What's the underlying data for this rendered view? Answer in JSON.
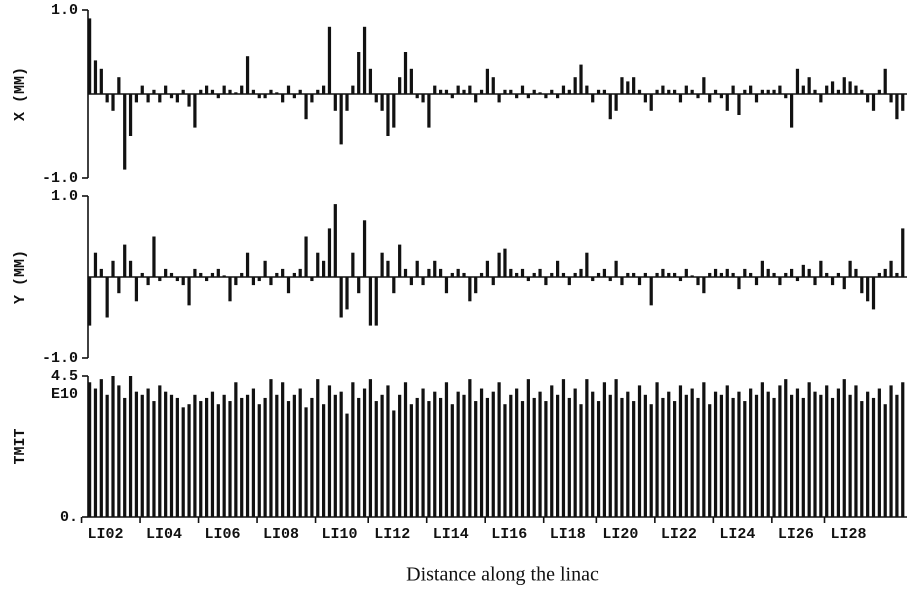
{
  "chart_data": [
    {
      "type": "bar",
      "ylabel": "X (MM)",
      "ylim": [
        -1,
        1
      ],
      "yticks": [
        {
          "value": 1,
          "label": "1.0"
        },
        {
          "value": -1,
          "label": "-1.0"
        }
      ],
      "color": "#111111",
      "values": [
        0.9,
        0.4,
        0.3,
        -0.1,
        -0.2,
        0.2,
        -0.9,
        -0.5,
        -0.1,
        0.1,
        -0.1,
        0.05,
        -0.1,
        0.1,
        -0.05,
        -0.1,
        0.05,
        -0.15,
        -0.4,
        0.05,
        0.1,
        0.05,
        -0.05,
        0.1,
        0.05,
        0.02,
        0.1,
        0.45,
        0.05,
        -0.05,
        -0.05,
        0.05,
        0.02,
        -0.1,
        0.1,
        -0.05,
        0.05,
        -0.3,
        -0.1,
        0.05,
        0.1,
        0.8,
        -0.2,
        -0.6,
        -0.2,
        0.1,
        0.5,
        0.8,
        0.3,
        -0.1,
        -0.2,
        -0.5,
        -0.4,
        0.2,
        0.5,
        0.3,
        -0.05,
        -0.1,
        -0.4,
        0.1,
        0.05,
        0.05,
        -0.05,
        0.1,
        0.05,
        0.1,
        -0.1,
        0.05,
        0.3,
        0.2,
        -0.1,
        0.05,
        0.05,
        -0.05,
        0.1,
        -0.05,
        0.05,
        0.02,
        -0.05,
        0.05,
        -0.05,
        0.1,
        0.05,
        0.2,
        0.35,
        0.1,
        -0.1,
        0.05,
        0.05,
        -0.3,
        -0.2,
        0.2,
        0.15,
        0.2,
        0.05,
        -0.1,
        -0.2,
        0.05,
        0.1,
        0.05,
        0.05,
        -0.1,
        0.1,
        0.05,
        -0.05,
        0.2,
        -0.1,
        0.05,
        -0.05,
        -0.2,
        0.1,
        -0.25,
        0.05,
        0.1,
        -0.1,
        0.05,
        0.05,
        0.05,
        0.1,
        -0.05,
        -0.4,
        0.3,
        0.1,
        0.2,
        0.05,
        -0.1,
        0.1,
        0.15,
        0.05,
        0.2,
        0.15,
        0.1,
        0.05,
        -0.1,
        -0.2,
        0.05,
        0.3,
        -0.1,
        -0.3,
        -0.2
      ]
    },
    {
      "type": "bar",
      "ylabel": "Y (MM)",
      "ylim": [
        -1,
        1
      ],
      "yticks": [
        {
          "value": 1,
          "label": "1.0"
        },
        {
          "value": -1,
          "label": "-1.0"
        }
      ],
      "color": "#111111",
      "values": [
        -0.6,
        0.3,
        0.1,
        -0.5,
        0.2,
        -0.2,
        0.4,
        0.2,
        -0.3,
        0.05,
        -0.1,
        0.5,
        -0.05,
        0.1,
        0.05,
        -0.05,
        -0.1,
        -0.35,
        0.1,
        0.05,
        -0.05,
        0.05,
        0.1,
        0.02,
        -0.3,
        -0.1,
        0.05,
        0.3,
        -0.1,
        -0.05,
        0.2,
        -0.1,
        0.05,
        0.1,
        -0.2,
        0.05,
        0.1,
        0.5,
        -0.05,
        0.3,
        0.2,
        0.6,
        0.9,
        -0.5,
        -0.4,
        0.3,
        -0.2,
        0.7,
        -0.6,
        -0.6,
        0.3,
        0.2,
        -0.2,
        0.4,
        0.1,
        -0.1,
        0.2,
        -0.1,
        0.1,
        0.2,
        0.1,
        -0.2,
        0.05,
        0.1,
        0.05,
        -0.3,
        -0.2,
        0.05,
        0.2,
        -0.1,
        0.3,
        0.35,
        0.1,
        0.05,
        0.1,
        -0.05,
        0.05,
        0.1,
        -0.1,
        0.05,
        0.2,
        0.05,
        -0.1,
        0.05,
        0.1,
        0.3,
        -0.05,
        0.05,
        0.1,
        -0.05,
        0.2,
        -0.1,
        0.05,
        0.05,
        -0.1,
        0.05,
        -0.35,
        0.05,
        0.1,
        0.05,
        0.05,
        -0.05,
        0.1,
        0.02,
        -0.1,
        -0.2,
        0.05,
        0.1,
        0.05,
        0.1,
        0.05,
        -0.15,
        0.1,
        0.05,
        -0.1,
        0.2,
        0.1,
        0.05,
        -0.1,
        0.05,
        0.1,
        -0.05,
        0.15,
        0.1,
        -0.1,
        0.2,
        0.05,
        -0.1,
        0.05,
        -0.15,
        0.2,
        0.1,
        -0.2,
        -0.3,
        -0.4,
        0.05,
        0.1,
        0.2,
        0.05,
        0.6
      ]
    },
    {
      "type": "bar",
      "ylabel": "TMIT",
      "axis_multiplier": "E10",
      "ylim": [
        0,
        4.5
      ],
      "yticks": [
        {
          "value": 0,
          "label": "0."
        },
        4.5
      ],
      "color": "#111111",
      "xlabel": "Distance along the linac",
      "xlim": [
        0,
        140
      ],
      "xticks": [
        {
          "value": 3,
          "label": "LI02"
        },
        {
          "value": 13,
          "label": "LI04"
        },
        {
          "value": 23,
          "label": "LI06"
        },
        {
          "value": 33,
          "label": "LI08"
        },
        {
          "value": 43,
          "label": "LI10"
        },
        {
          "value": 52,
          "label": "LI12"
        },
        {
          "value": 62,
          "label": "LI14"
        },
        {
          "value": 72,
          "label": "LI16"
        },
        {
          "value": 82,
          "label": "LI18"
        },
        {
          "value": 91,
          "label": "LI20"
        },
        {
          "value": 101,
          "label": "LI22"
        },
        {
          "value": 111,
          "label": "LI24"
        },
        {
          "value": 121,
          "label": "LI26"
        },
        {
          "value": 130,
          "label": "LI28"
        }
      ],
      "values": [
        4.3,
        4.1,
        4.4,
        3.9,
        4.5,
        4.2,
        3.8,
        4.5,
        4.0,
        3.9,
        4.1,
        3.7,
        4.2,
        4.0,
        3.9,
        3.8,
        3.5,
        3.6,
        3.9,
        3.7,
        3.8,
        4.0,
        3.6,
        3.9,
        3.7,
        4.3,
        3.8,
        3.9,
        4.1,
        3.6,
        3.8,
        4.4,
        3.9,
        4.3,
        3.7,
        3.9,
        4.1,
        3.5,
        3.8,
        4.4,
        3.6,
        4.2,
        3.9,
        4.0,
        3.3,
        4.3,
        3.8,
        4.1,
        4.4,
        3.7,
        3.9,
        4.2,
        3.4,
        3.9,
        4.3,
        3.6,
        3.8,
        4.1,
        3.7,
        4.0,
        3.8,
        4.3,
        3.6,
        4.0,
        3.9,
        4.4,
        3.7,
        4.1,
        3.8,
        4.0,
        4.3,
        3.6,
        3.9,
        4.1,
        3.7,
        4.4,
        3.8,
        4.0,
        3.7,
        4.2,
        3.9,
        4.4,
        3.8,
        4.1,
        3.6,
        4.4,
        4.0,
        3.7,
        4.3,
        3.9,
        4.4,
        3.8,
        4.0,
        3.7,
        4.2,
        3.9,
        3.6,
        4.3,
        3.8,
        4.0,
        3.7,
        4.2,
        3.9,
        4.1,
        3.8,
        4.3,
        3.6,
        4.0,
        3.9,
        4.2,
        3.8,
        4.0,
        3.7,
        4.1,
        3.9,
        4.3,
        4.0,
        3.8,
        4.2,
        4.4,
        3.9,
        4.1,
        3.8,
        4.3,
        4.0,
        3.9,
        4.2,
        3.8,
        4.1,
        4.4,
        3.9,
        4.2,
        3.7,
        4.0,
        3.8,
        4.1,
        3.6,
        4.2,
        3.9,
        4.3
      ]
    }
  ]
}
